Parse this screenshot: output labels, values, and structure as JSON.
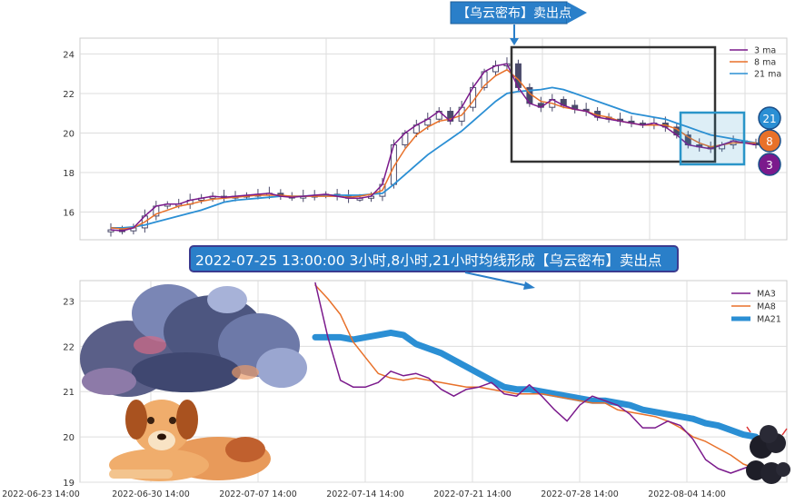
{
  "top_label": "【乌云密布】卖出点",
  "annotation": "2022-07-25 13:00:00 3小时,8小时,21小时均线形成【乌云密布】卖出点",
  "colors": {
    "ma3": "#7b1a8c",
    "ma8": "#e8712a",
    "ma21": "#2b8fd4",
    "candle": "#4a4a6a",
    "box_dark": "#333333",
    "box_blue": "#2a95c9",
    "label_bg": "#2a7fc9",
    "label_border": "#3b3b8f"
  },
  "badges": [
    "21",
    "8",
    "3"
  ],
  "chart_data": [
    {
      "type": "candlestick+line",
      "panel": "top",
      "legend_position": "top-right",
      "ylim": [
        14.6,
        24.8
      ],
      "yticks": [
        "16",
        "18",
        "20",
        "22",
        "24"
      ],
      "grid": true,
      "legend": [
        "3 ma",
        "8 ma",
        "21 ma"
      ],
      "series": [
        {
          "name": "3 ma",
          "values": [
            15.1,
            15.05,
            15.2,
            15.8,
            16.3,
            16.4,
            16.4,
            16.6,
            16.7,
            16.8,
            16.75,
            16.8,
            16.85,
            16.9,
            16.95,
            16.8,
            16.75,
            16.8,
            16.85,
            16.9,
            16.8,
            16.7,
            16.7,
            16.8,
            17.4,
            19.4,
            20.0,
            20.4,
            20.7,
            21.1,
            20.6,
            21.3,
            22.3,
            23.1,
            23.4,
            23.5,
            22.3,
            21.5,
            21.3,
            21.7,
            21.4,
            21.2,
            21.1,
            20.8,
            20.7,
            20.6,
            20.5,
            20.4,
            20.5,
            20.3,
            19.9,
            19.4,
            19.3,
            19.2,
            19.4,
            19.6,
            19.5,
            19.4
          ]
        },
        {
          "name": "8 ma",
          "values": [
            15.2,
            15.15,
            15.2,
            15.5,
            15.9,
            16.1,
            16.3,
            16.4,
            16.55,
            16.65,
            16.7,
            16.75,
            16.8,
            16.85,
            16.85,
            16.85,
            16.8,
            16.8,
            16.8,
            16.8,
            16.8,
            16.75,
            16.8,
            16.9,
            17.1,
            18.3,
            19.2,
            19.9,
            20.3,
            20.6,
            20.7,
            20.9,
            21.6,
            22.4,
            22.9,
            23.2,
            22.7,
            22.0,
            21.6,
            21.5,
            21.3,
            21.2,
            21.1,
            20.9,
            20.8,
            20.6,
            20.5,
            20.4,
            20.4,
            20.4,
            20.2,
            19.8,
            19.5,
            19.3,
            19.4,
            19.5,
            19.5,
            19.5
          ]
        },
        {
          "name": "21 ma",
          "values": [
            15.2,
            15.2,
            15.25,
            15.35,
            15.5,
            15.65,
            15.8,
            15.95,
            16.1,
            16.3,
            16.5,
            16.6,
            16.65,
            16.7,
            16.75,
            16.8,
            16.8,
            16.8,
            16.85,
            16.85,
            16.85,
            16.85,
            16.85,
            16.9,
            16.95,
            17.4,
            17.9,
            18.4,
            18.9,
            19.3,
            19.7,
            20.1,
            20.6,
            21.1,
            21.6,
            22.0,
            22.1,
            22.15,
            22.2,
            22.3,
            22.2,
            22.0,
            21.8,
            21.6,
            21.4,
            21.2,
            21.0,
            20.9,
            20.8,
            20.7,
            20.5,
            20.3,
            20.1,
            19.9,
            19.8,
            19.7,
            19.6,
            19.5
          ]
        }
      ]
    },
    {
      "type": "line",
      "panel": "bottom",
      "legend_position": "top-right",
      "ylim": [
        19.0,
        23.45
      ],
      "yticks": [
        "19",
        "20",
        "21",
        "22",
        "23"
      ],
      "grid": true,
      "x_ticks": [
        "2022-06-23 14:00",
        "2022-06-30 14:00",
        "2022-07-07 14:00",
        "2022-07-14 14:00",
        "2022-07-21 14:00",
        "2022-07-28 14:00",
        "2022-08-04 14:00"
      ],
      "legend": [
        "MA3",
        "MA8",
        "MA21"
      ],
      "series": [
        {
          "name": "MA3",
          "values": [
            23.4,
            22.2,
            21.25,
            21.1,
            21.1,
            21.2,
            21.45,
            21.35,
            21.4,
            21.3,
            21.05,
            20.9,
            21.05,
            21.1,
            21.2,
            20.95,
            20.9,
            21.15,
            20.9,
            20.6,
            20.35,
            20.7,
            20.9,
            20.8,
            20.7,
            20.5,
            20.2,
            20.2,
            20.35,
            20.25,
            19.95,
            19.5,
            19.3,
            19.2,
            19.3,
            19.4
          ]
        },
        {
          "name": "MA8",
          "values": [
            23.35,
            23.05,
            22.7,
            22.1,
            21.75,
            21.4,
            21.3,
            21.25,
            21.3,
            21.25,
            21.2,
            21.15,
            21.1,
            21.1,
            21.05,
            21.0,
            20.95,
            20.95,
            20.95,
            20.9,
            20.85,
            20.8,
            20.75,
            20.75,
            20.6,
            20.55,
            20.5,
            20.45,
            20.35,
            20.2,
            20.0,
            19.9,
            19.75,
            19.6,
            19.4,
            19.3
          ]
        },
        {
          "name": "MA21",
          "values": [
            22.2,
            22.2,
            22.2,
            22.15,
            22.2,
            22.25,
            22.3,
            22.25,
            22.05,
            21.95,
            21.85,
            21.7,
            21.55,
            21.4,
            21.25,
            21.1,
            21.05,
            21.05,
            21.0,
            20.95,
            20.9,
            20.85,
            20.8,
            20.8,
            20.75,
            20.7,
            20.6,
            20.55,
            20.5,
            20.45,
            20.4,
            20.3,
            20.25,
            20.15,
            20.05,
            20.0
          ]
        }
      ]
    }
  ]
}
